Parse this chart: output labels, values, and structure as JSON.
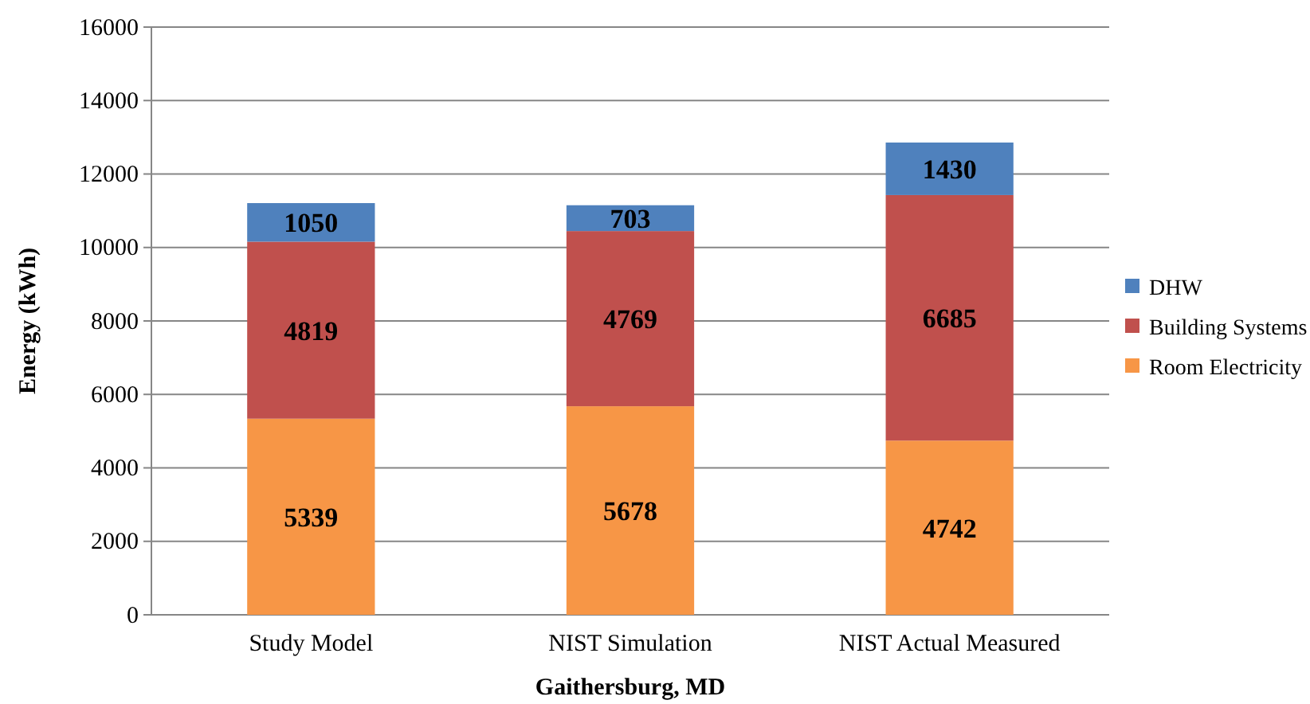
{
  "chart_data": {
    "type": "bar",
    "stacked": true,
    "xlabel": "Gaithersburg, MD",
    "ylabel": "Energy (kWh)",
    "categories": [
      "Study Model",
      "NIST Simulation",
      "NIST Actual Measured"
    ],
    "series": [
      {
        "name": "Room Electricity",
        "color": "#f79646",
        "values": [
          5339,
          5678,
          4742
        ]
      },
      {
        "name": "Building Systems",
        "color": "#c0504d",
        "values": [
          4819,
          4769,
          6685
        ]
      },
      {
        "name": "DHW",
        "color": "#4f81bd",
        "values": [
          1050,
          703,
          1430
        ]
      }
    ],
    "ylim": [
      0,
      16000
    ],
    "yticks": [
      0,
      2000,
      4000,
      6000,
      8000,
      10000,
      12000,
      14000,
      16000
    ],
    "grid": "y",
    "legend": "right",
    "data_labels": true
  }
}
